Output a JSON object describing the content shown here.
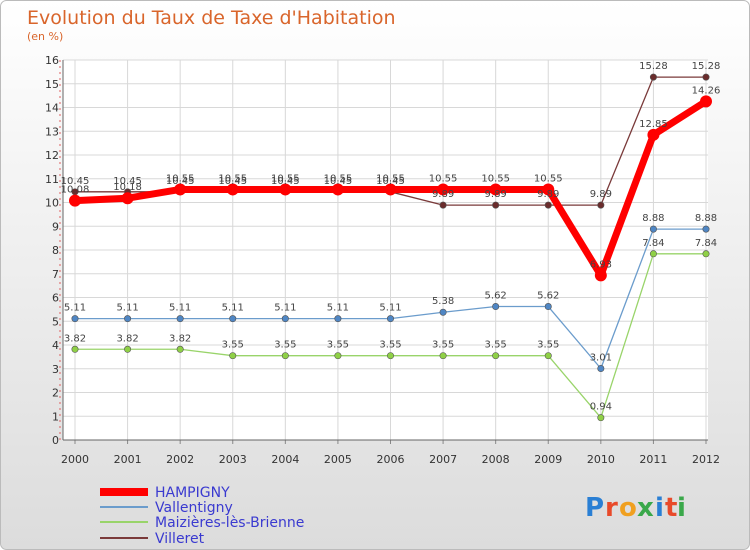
{
  "chart_data": {
    "type": "line",
    "title": "Evolution du Taux de Taxe d'Habitation",
    "subtitle": "(en %)",
    "categories": [
      "2000",
      "2001",
      "2002",
      "2003",
      "2004",
      "2005",
      "2006",
      "2007",
      "2008",
      "2009",
      "2010",
      "2011",
      "2012"
    ],
    "ylim": [
      0,
      16
    ],
    "yticks": [
      0,
      1,
      2,
      3,
      4,
      5,
      6,
      7,
      8,
      9,
      10,
      11,
      12,
      13,
      14,
      15,
      16
    ],
    "grid": true,
    "legend_position": "bottom-left",
    "series": [
      {
        "name": "HAMPIGNY",
        "color": "#ff0000",
        "values": [
          10.08,
          10.18,
          10.55,
          10.55,
          10.55,
          10.55,
          10.55,
          10.55,
          10.55,
          10.55,
          6.93,
          12.85,
          14.26
        ],
        "labels": [
          "10.08",
          "10.18",
          "10.55",
          "10.55",
          "10.55",
          "10.55",
          "10.55",
          "10.55",
          "10.55",
          "10.55",
          "6.93",
          "12.85",
          "14.26"
        ]
      },
      {
        "name": "Vallentigny",
        "color": "#6b9ccc",
        "values": [
          5.11,
          5.11,
          5.11,
          5.11,
          5.11,
          5.11,
          5.11,
          5.38,
          5.62,
          5.62,
          3.01,
          8.88,
          8.88
        ],
        "labels": [
          "5.11",
          "5.11",
          "5.11",
          "5.11",
          "5.11",
          "5.11",
          "5.11",
          "5.38",
          "5.62",
          "5.62",
          "3.01",
          "8.88",
          "8.88"
        ]
      },
      {
        "name": "Maizières-lès-Brienne",
        "color": "#99d46a",
        "values": [
          3.82,
          3.82,
          3.82,
          3.55,
          3.55,
          3.55,
          3.55,
          3.55,
          3.55,
          3.55,
          0.94,
          7.84,
          7.84
        ],
        "labels": [
          "3.82",
          "3.82",
          "3.82",
          "3.55",
          "3.55",
          "3.55",
          "3.55",
          "3.55",
          "3.55",
          "3.55",
          "0.94",
          "7.84",
          "7.84"
        ]
      },
      {
        "name": "Villeret",
        "color": "#7a3a3a",
        "values": [
          10.45,
          10.45,
          10.45,
          10.45,
          10.45,
          10.45,
          10.45,
          9.89,
          9.89,
          9.89,
          9.89,
          15.28,
          15.28
        ],
        "labels": [
          "10.45",
          "10.45",
          "10.45",
          "10.45",
          "10.45",
          "10.45",
          "10.45",
          "9.89",
          "9.89",
          "9.89",
          "9.89",
          "15.28",
          "15.28"
        ]
      }
    ]
  },
  "logo": {
    "text": "Proxiti"
  }
}
